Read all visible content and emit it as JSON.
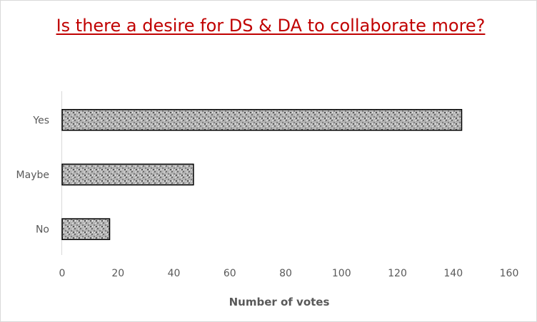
{
  "chart_data": {
    "type": "bar",
    "orientation": "horizontal",
    "title": "Is there a desire for DS & DA to collaborate more?",
    "categories": [
      "Yes",
      "Maybe",
      "No"
    ],
    "values": [
      143,
      47,
      17
    ],
    "xlabel": "Number of votes",
    "ylabel": "",
    "xlim": [
      0,
      160
    ],
    "xticks": [
      0,
      20,
      40,
      60,
      80,
      100,
      120,
      140,
      160
    ],
    "grid": false,
    "legend": "none",
    "colors": {
      "title": "#c00000",
      "bar_fill": "#a6a6a6",
      "bar_pattern": "#6f6f6f",
      "bar_border": "#000000",
      "text": "#595959"
    }
  }
}
